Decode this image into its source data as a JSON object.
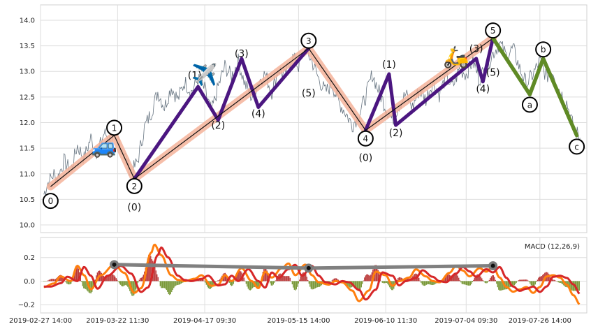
{
  "chart_data": [
    {
      "type": "line",
      "panel": "price",
      "ylim": [
        9.85,
        14.3
      ],
      "yticks": [
        "10.0",
        "10.5",
        "11.0",
        "11.5",
        "12.0",
        "12.5",
        "13.0",
        "13.5",
        "14.0"
      ],
      "xlim": [
        "2019-02-27",
        "2019-08-09"
      ],
      "grid": true,
      "price_path": [
        [
          "2019-02-28",
          10.6
        ],
        [
          "2019-03-01",
          10.8
        ],
        [
          "2019-03-03",
          11.0
        ],
        [
          "2019-03-04",
          10.9
        ],
        [
          "2019-03-06",
          11.25
        ],
        [
          "2019-03-08",
          11.05
        ],
        [
          "2019-03-10",
          11.55
        ],
        [
          "2019-03-12",
          11.3
        ],
        [
          "2019-03-14",
          11.7
        ],
        [
          "2019-03-16",
          11.4
        ],
        [
          "2019-03-18",
          11.8
        ],
        [
          "2019-03-20",
          11.65
        ],
        [
          "2019-03-22",
          11.7
        ],
        [
          "2019-03-24",
          11.4
        ],
        [
          "2019-03-26",
          11.0
        ],
        [
          "2019-03-28",
          11.25
        ],
        [
          "2019-03-30",
          11.9
        ],
        [
          "2019-04-01",
          12.2
        ],
        [
          "2019-04-03",
          12.6
        ],
        [
          "2019-04-05",
          12.3
        ],
        [
          "2019-04-07",
          12.7
        ],
        [
          "2019-04-09",
          12.45
        ],
        [
          "2019-04-11",
          12.8
        ],
        [
          "2019-04-13",
          12.6
        ],
        [
          "2019-04-15",
          12.85
        ],
        [
          "2019-04-17",
          12.65
        ],
        [
          "2019-04-19",
          12.2
        ],
        [
          "2019-04-21",
          12.7
        ],
        [
          "2019-04-23",
          13.1
        ],
        [
          "2019-04-25",
          12.9
        ],
        [
          "2019-04-27",
          13.2
        ],
        [
          "2019-04-29",
          12.75
        ],
        [
          "2019-05-01",
          12.5
        ],
        [
          "2019-05-03",
          12.8
        ],
        [
          "2019-05-05",
          12.95
        ],
        [
          "2019-05-07",
          12.6
        ],
        [
          "2019-05-09",
          13.05
        ],
        [
          "2019-05-11",
          12.9
        ],
        [
          "2019-05-13",
          13.3
        ],
        [
          "2019-05-15",
          13.1
        ],
        [
          "2019-05-17",
          13.45
        ],
        [
          "2019-05-19",
          13.2
        ],
        [
          "2019-05-21",
          12.85
        ],
        [
          "2019-05-23",
          12.6
        ],
        [
          "2019-05-25",
          12.75
        ],
        [
          "2019-05-27",
          12.4
        ],
        [
          "2019-05-29",
          12.2
        ],
        [
          "2019-05-31",
          11.95
        ],
        [
          "2019-06-02",
          12.15
        ],
        [
          "2019-06-04",
          12.5
        ],
        [
          "2019-06-06",
          12.95
        ],
        [
          "2019-06-08",
          12.6
        ],
        [
          "2019-06-10",
          12.3
        ],
        [
          "2019-06-12",
          12.05
        ],
        [
          "2019-06-14",
          12.35
        ],
        [
          "2019-06-16",
          12.55
        ],
        [
          "2019-06-18",
          12.3
        ],
        [
          "2019-06-20",
          12.65
        ],
        [
          "2019-06-22",
          12.45
        ],
        [
          "2019-06-24",
          12.8
        ],
        [
          "2019-06-26",
          12.55
        ],
        [
          "2019-06-28",
          12.9
        ],
        [
          "2019-06-30",
          12.7
        ],
        [
          "2019-07-02",
          13.05
        ],
        [
          "2019-07-04",
          12.95
        ],
        [
          "2019-07-06",
          13.2
        ],
        [
          "2019-07-08",
          12.85
        ],
        [
          "2019-07-10",
          13.1
        ],
        [
          "2019-07-12",
          13.35
        ],
        [
          "2019-07-14",
          13.55
        ],
        [
          "2019-07-16",
          13.3
        ],
        [
          "2019-07-18",
          13.45
        ],
        [
          "2019-07-20",
          13.05
        ],
        [
          "2019-07-22",
          12.75
        ],
        [
          "2019-07-24",
          12.95
        ],
        [
          "2019-07-26",
          13.2
        ],
        [
          "2019-07-28",
          12.9
        ],
        [
          "2019-07-30",
          13.0
        ],
        [
          "2019-08-01",
          12.6
        ],
        [
          "2019-08-03",
          12.4
        ],
        [
          "2019-08-05",
          11.9
        ],
        [
          "2019-08-07",
          11.7
        ]
      ],
      "waves": {
        "primary": {
          "color": "#f4b39a",
          "points": [
            [
              "2019-03-02",
              10.75
            ],
            [
              "2019-03-21",
              11.75
            ],
            [
              "2019-03-27",
              10.9
            ],
            [
              "2019-05-18",
              13.45
            ],
            [
              "2019-06-04",
              11.85
            ],
            [
              "2019-07-12",
              13.65
            ]
          ]
        },
        "primary_thin": {
          "color": "#111111",
          "points": [
            [
              "2019-03-02",
              10.75
            ],
            [
              "2019-03-21",
              11.75
            ],
            [
              "2019-03-27",
              10.9
            ],
            [
              "2019-05-18",
              13.45
            ],
            [
              "2019-06-04",
              11.85
            ],
            [
              "2019-07-12",
              13.65
            ]
          ]
        },
        "intermediate": [
          {
            "color": "#4b1680",
            "points": [
              [
                "2019-03-27",
                10.9
              ],
              [
                "2019-04-15",
                12.7
              ],
              [
                "2019-04-21",
                12.05
              ],
              [
                "2019-04-28",
                13.25
              ],
              [
                "2019-05-03",
                12.3
              ],
              [
                "2019-05-18",
                13.45
              ]
            ]
          },
          {
            "color": "#4b1680",
            "points": [
              [
                "2019-06-04",
                11.85
              ],
              [
                "2019-06-11",
                12.95
              ],
              [
                "2019-06-13",
                11.95
              ],
              [
                "2019-07-07",
                13.25
              ],
              [
                "2019-07-09",
                12.8
              ],
              [
                "2019-07-12",
                13.65
              ]
            ]
          }
        ],
        "correction": {
          "color": "#5f8a25",
          "points": [
            [
              "2019-07-12",
              13.65
            ],
            [
              "2019-07-23",
              12.55
            ],
            [
              "2019-07-27",
              13.25
            ],
            [
              "2019-08-06",
              11.75
            ]
          ]
        }
      },
      "labels": [
        {
          "text": "0",
          "circled": true,
          "x": "2019-03-02",
          "y": 10.47
        },
        {
          "text": "1",
          "circled": true,
          "x": "2019-03-21",
          "y": 11.9
        },
        {
          "text": "2",
          "circled": true,
          "x": "2019-03-27",
          "y": 10.76
        },
        {
          "text": "3",
          "circled": true,
          "x": "2019-05-18",
          "y": 13.6
        },
        {
          "text": "4",
          "circled": true,
          "x": "2019-06-04",
          "y": 11.69
        },
        {
          "text": "5",
          "circled": true,
          "x": "2019-07-12",
          "y": 13.8
        },
        {
          "text": "a",
          "circled": true,
          "x": "2019-07-23",
          "y": 12.35
        },
        {
          "text": "b",
          "circled": true,
          "x": "2019-07-27",
          "y": 13.43
        },
        {
          "text": "c",
          "circled": true,
          "x": "2019-08-06",
          "y": 11.53
        },
        {
          "text": "(0)",
          "circled": false,
          "x": "2019-03-27",
          "y": 10.35
        },
        {
          "text": "(1)",
          "circled": false,
          "x": "2019-04-14",
          "y": 12.93
        },
        {
          "text": "(2)",
          "circled": false,
          "x": "2019-04-21",
          "y": 11.95
        },
        {
          "text": "(3)",
          "circled": false,
          "x": "2019-04-28",
          "y": 13.35
        },
        {
          "text": "(4)",
          "circled": false,
          "x": "2019-05-03",
          "y": 12.18
        },
        {
          "text": "(5)",
          "circled": false,
          "x": "2019-05-18",
          "y": 12.58
        },
        {
          "text": "(0)",
          "circled": false,
          "x": "2019-06-04",
          "y": 11.32
        },
        {
          "text": "(1)",
          "circled": false,
          "x": "2019-06-11",
          "y": 13.14
        },
        {
          "text": "(2)",
          "circled": false,
          "x": "2019-06-13",
          "y": 11.8
        },
        {
          "text": "(3)",
          "circled": false,
          "x": "2019-07-07",
          "y": 13.45
        },
        {
          "text": "(4)",
          "circled": false,
          "x": "2019-07-09",
          "y": 12.66
        },
        {
          "text": "(5)",
          "circled": false,
          "x": "2019-07-12",
          "y": 12.98
        }
      ],
      "emojis": [
        {
          "name": "car-emoji",
          "char": "🚙",
          "x": "2019-03-18",
          "y": 11.55
        },
        {
          "name": "airplane-emoji",
          "char": "✈️",
          "x": "2019-04-17",
          "y": 12.95
        },
        {
          "name": "scooter-emoji",
          "char": "🛵",
          "x": "2019-07-01",
          "y": 13.3
        }
      ]
    },
    {
      "type": "line",
      "panel": "macd",
      "title": "MACD (12,26,9)",
      "ylim": [
        -0.27,
        0.37
      ],
      "yticks": [
        "0.2",
        "0.0",
        "−0.2"
      ],
      "grid": true,
      "macd_path": [
        [
          "2019-02-28",
          -0.05
        ],
        [
          "2019-03-03",
          -0.02
        ],
        [
          "2019-03-05",
          0.04
        ],
        [
          "2019-03-08",
          0.0
        ],
        [
          "2019-03-10",
          0.13
        ],
        [
          "2019-03-12",
          0.05
        ],
        [
          "2019-03-14",
          -0.07
        ],
        [
          "2019-03-17",
          0.05
        ],
        [
          "2019-03-21",
          0.14
        ],
        [
          "2019-03-24",
          0.07
        ],
        [
          "2019-03-27",
          -0.1
        ],
        [
          "2019-03-29",
          -0.06
        ],
        [
          "2019-04-01",
          0.24
        ],
        [
          "2019-04-02",
          0.31
        ],
        [
          "2019-04-04",
          0.22
        ],
        [
          "2019-04-07",
          0.05
        ],
        [
          "2019-04-09",
          0.01
        ],
        [
          "2019-04-11",
          0.0
        ],
        [
          "2019-04-14",
          0.02
        ],
        [
          "2019-04-16",
          0.05
        ],
        [
          "2019-04-19",
          -0.04
        ],
        [
          "2019-04-21",
          -0.03
        ],
        [
          "2019-04-23",
          0.05
        ],
        [
          "2019-04-25",
          0.0
        ],
        [
          "2019-04-28",
          0.11
        ],
        [
          "2019-05-01",
          0.0
        ],
        [
          "2019-05-03",
          -0.06
        ],
        [
          "2019-05-05",
          0.08
        ],
        [
          "2019-05-07",
          0.03
        ],
        [
          "2019-05-10",
          0.11
        ],
        [
          "2019-05-12",
          0.15
        ],
        [
          "2019-05-14",
          0.05
        ],
        [
          "2019-05-17",
          0.14
        ],
        [
          "2019-05-19",
          0.05
        ],
        [
          "2019-05-21",
          -0.01
        ],
        [
          "2019-05-24",
          -0.03
        ],
        [
          "2019-05-26",
          0.0
        ],
        [
          "2019-05-28",
          -0.01
        ],
        [
          "2019-05-31",
          -0.08
        ],
        [
          "2019-06-02",
          -0.17
        ],
        [
          "2019-06-05",
          -0.08
        ],
        [
          "2019-06-07",
          0.08
        ],
        [
          "2019-06-10",
          0.05
        ],
        [
          "2019-06-12",
          -0.04
        ],
        [
          "2019-06-14",
          0.0
        ],
        [
          "2019-06-17",
          0.03
        ],
        [
          "2019-06-19",
          0.1
        ],
        [
          "2019-06-22",
          0.04
        ],
        [
          "2019-06-24",
          0.0
        ],
        [
          "2019-06-26",
          -0.01
        ],
        [
          "2019-06-29",
          0.07
        ],
        [
          "2019-07-01",
          0.13
        ],
        [
          "2019-07-03",
          0.09
        ],
        [
          "2019-07-05",
          0.04
        ],
        [
          "2019-07-08",
          0.11
        ],
        [
          "2019-07-10",
          0.08
        ],
        [
          "2019-07-12",
          0.13
        ],
        [
          "2019-07-14",
          0.03
        ],
        [
          "2019-07-16",
          -0.05
        ],
        [
          "2019-07-18",
          -0.09
        ],
        [
          "2019-07-20",
          -0.07
        ],
        [
          "2019-07-22",
          -0.05
        ],
        [
          "2019-07-24",
          -0.1
        ],
        [
          "2019-07-26",
          -0.05
        ],
        [
          "2019-07-28",
          0.04
        ],
        [
          "2019-07-30",
          0.05
        ],
        [
          "2019-08-01",
          0.03
        ],
        [
          "2019-08-03",
          -0.03
        ],
        [
          "2019-08-05",
          -0.12
        ],
        [
          "2019-08-07",
          -0.2
        ]
      ],
      "signal_lag_days": 2,
      "macd_color": "#ff7f0e",
      "signal_color": "#d62728",
      "hist_pos_color": "#b22222",
      "hist_neg_color": "#6b8e23",
      "divergence_line": {
        "color": "#808080",
        "points": [
          [
            "2019-03-21",
            0.14
          ],
          [
            "2019-05-18",
            0.11
          ],
          [
            "2019-07-12",
            0.13
          ]
        ]
      }
    }
  ],
  "x_axis": {
    "tick_labels": [
      {
        "date": "2019-02-27",
        "label": "2019-02-27 14:00"
      },
      {
        "date": "2019-03-22",
        "label": "2019-03-22 11:30"
      },
      {
        "date": "2019-04-17",
        "label": "2019-04-17 09:30"
      },
      {
        "date": "2019-05-15",
        "label": "2019-05-15 14:00"
      },
      {
        "date": "2019-06-10",
        "label": "2019-06-10 11:30"
      },
      {
        "date": "2019-07-04",
        "label": "2019-07-04 09:30"
      },
      {
        "date": "2019-07-26",
        "label": "2019-07-26 14:00"
      }
    ]
  }
}
